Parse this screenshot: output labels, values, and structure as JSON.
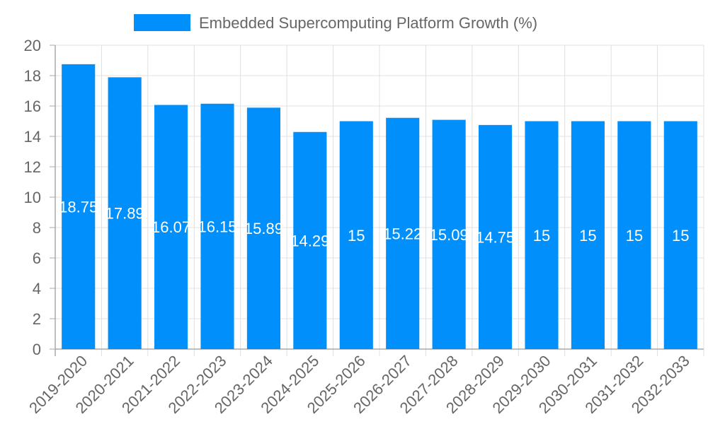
{
  "chart_data": {
    "type": "bar",
    "title": "",
    "legend": [
      {
        "label": "Embedded Supercomputing Platform Growth (%)",
        "color": "#008ffb"
      }
    ],
    "legend_position": "top",
    "categories": [
      "2019-2020",
      "2020-2021",
      "2021-2022",
      "2022-2023",
      "2023-2024",
      "2024-2025",
      "2025-2026",
      "2026-2027",
      "2027-2028",
      "2028-2029",
      "2029-2030",
      "2030-2031",
      "2031-2032",
      "2032-2033"
    ],
    "series": [
      {
        "name": "Embedded Supercomputing Platform Growth (%)",
        "values": [
          18.75,
          17.89,
          16.07,
          16.15,
          15.89,
          14.29,
          15,
          15.22,
          15.09,
          14.75,
          15,
          15,
          15,
          15
        ]
      }
    ],
    "data_labels": [
      "18.75",
      "17.89",
      "16.07",
      "16.15",
      "15.89",
      "14.29",
      "15",
      "15.22",
      "15.09",
      "14.75",
      "15",
      "15",
      "15",
      "15"
    ],
    "xlabel": "",
    "ylabel": "",
    "ylim": [
      0,
      20
    ],
    "yticks": [
      0,
      2,
      4,
      6,
      8,
      10,
      12,
      14,
      16,
      18,
      20
    ],
    "grid": true,
    "colors": {
      "bar": "#008ffb",
      "grid": "#e0e0e0",
      "axis": "#aaaaaa",
      "tick_text": "#666666",
      "label_text": "#ffffff"
    }
  }
}
